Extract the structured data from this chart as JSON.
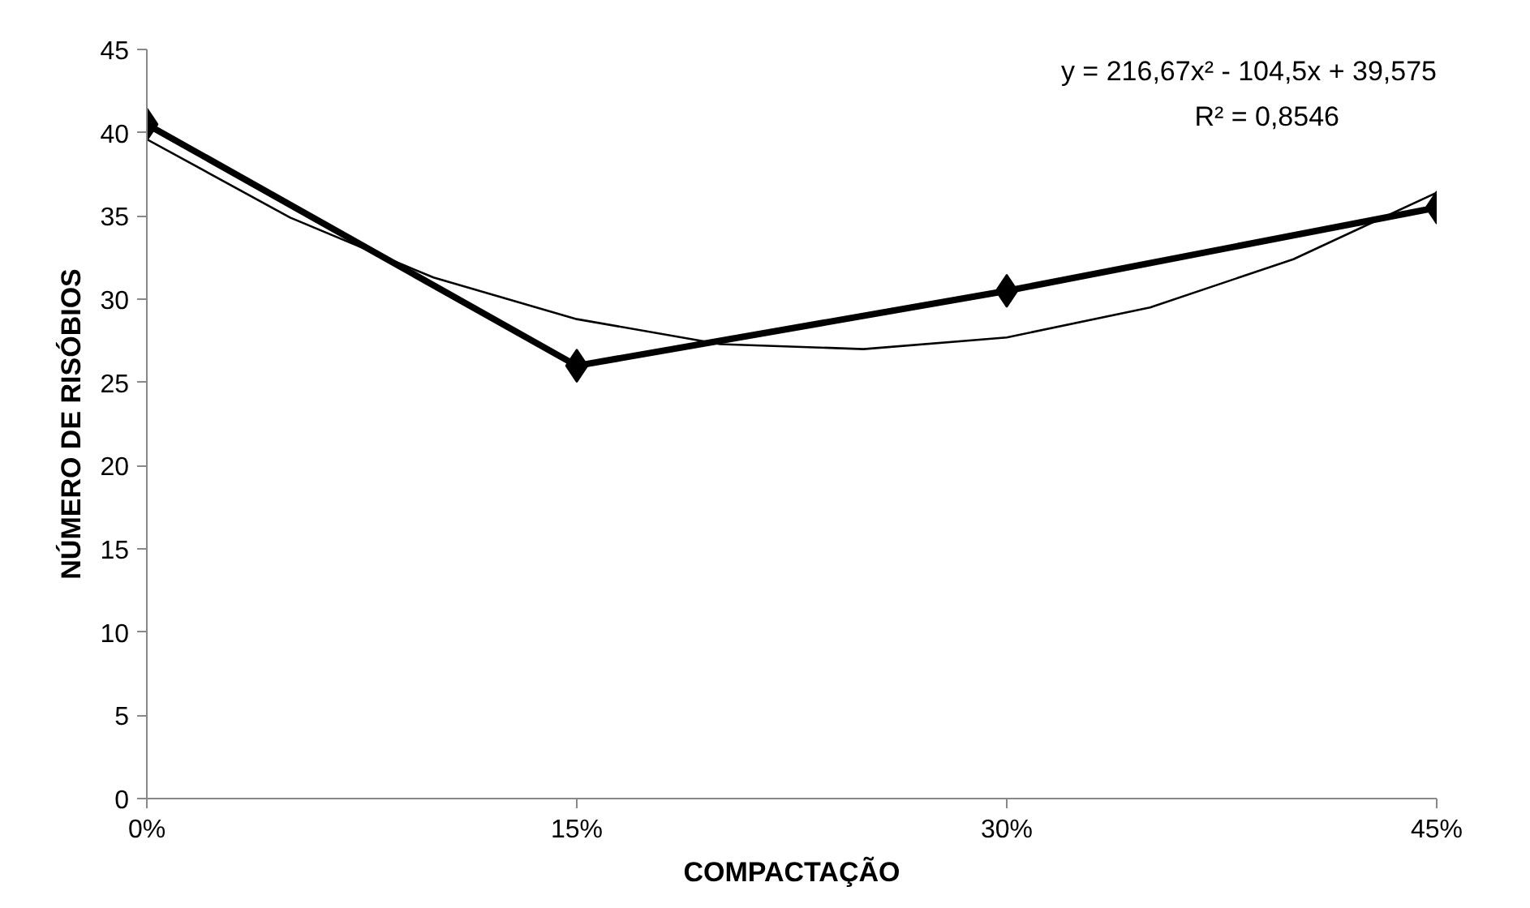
{
  "chart_data": {
    "type": "line",
    "xlabel": "COMPACTAÇÃO",
    "ylabel": "NÚMERO DE RISÓBIOS",
    "x": [
      0,
      0.15,
      0.3,
      0.45
    ],
    "xlim": [
      0,
      0.45
    ],
    "xticks": [
      {
        "value": 0,
        "label": "0%"
      },
      {
        "value": 0.15,
        "label": "15%"
      },
      {
        "value": 0.3,
        "label": "30%"
      },
      {
        "value": 0.45,
        "label": "45%"
      }
    ],
    "ylim": [
      0,
      45
    ],
    "yticks": [
      0,
      5,
      10,
      15,
      20,
      25,
      30,
      35,
      40,
      45
    ],
    "series": [
      {
        "color": "#000000",
        "values": [
          40.5,
          26,
          30.5,
          35.5
        ],
        "marker": "diamond",
        "line_style": "solid"
      },
      {
        "type": "line",
        "color": "#000000",
        "x": [
          0,
          0.05,
          0.1,
          0.15,
          0.2,
          0.25,
          0.3,
          0.35,
          0.4,
          0.45
        ],
        "values": [
          39.6,
          34.9,
          31.3,
          28.8,
          27.3,
          27.0,
          27.7,
          29.5,
          32.4,
          36.4
        ],
        "marker": "none",
        "line_style": "solid"
      }
    ],
    "annotations": [
      "y = 216,67x² - 104,5x + 39,575",
      "R² = 0,8546"
    ],
    "grid": false
  }
}
